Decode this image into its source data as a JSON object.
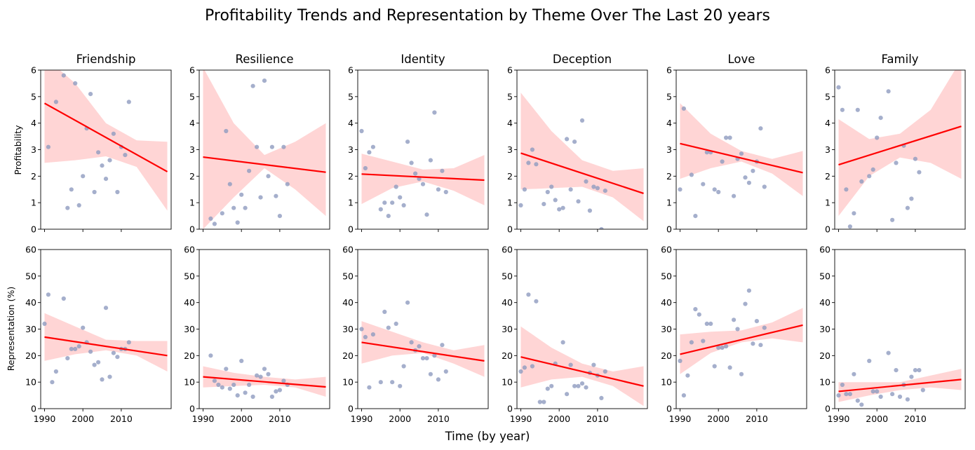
{
  "chart_data": {
    "type": "scatter",
    "title": "Profitability Trends and Representation by Theme Over The Last 20 years",
    "xlabel": "Time (by year)",
    "x_ticks": [
      1990,
      2000,
      2010
    ],
    "xlim": [
      1989,
      2023
    ],
    "rows": [
      {
        "ylabel": "Profitability",
        "ylim": [
          0,
          6
        ],
        "y_ticks": [
          0,
          1,
          2,
          3,
          4,
          5,
          6
        ]
      },
      {
        "ylabel": "Representation (%)",
        "ylim": [
          0,
          60
        ],
        "y_ticks": [
          0,
          10,
          20,
          30,
          40,
          50,
          60
        ]
      }
    ],
    "colors": {
      "points": "#8f9bbf",
      "fit_line": "#ff0000",
      "ci_band": "#ffb3b3"
    },
    "panels": [
      {
        "theme": "Friendship",
        "profitability": {
          "x": [
            1990,
            1991,
            1993,
            1995,
            1996,
            1997,
            1998,
            1999,
            2000,
            2001,
            2002,
            2003,
            2004,
            2005,
            2006,
            2007,
            2008,
            2009,
            2010,
            2011,
            2012
          ],
          "y": [
            6.1,
            3.1,
            4.8,
            5.8,
            0.8,
            1.5,
            5.5,
            0.9,
            2.0,
            3.8,
            5.1,
            1.4,
            2.9,
            2.4,
            1.9,
            2.6,
            3.6,
            1.4,
            3.1,
            2.8,
            4.8
          ],
          "fit": {
            "start": 4.75,
            "end": 2.17
          },
          "ci": {
            "lower": [
              2.5,
              2.6,
              2.75,
              2.35,
              0.7
            ],
            "upper": [
              6.5,
              5.5,
              4.0,
              3.35,
              3.3
            ]
          }
        },
        "representation": {
          "x": [
            1990,
            1991,
            1992,
            1993,
            1995,
            1996,
            1997,
            1998,
            1999,
            2000,
            2001,
            2002,
            2003,
            2004,
            2005,
            2006,
            2007,
            2008,
            2009,
            2010,
            2011,
            2012
          ],
          "y": [
            32,
            43,
            10,
            14,
            41.5,
            19,
            22.5,
            22.5,
            23.5,
            30.5,
            25,
            21.5,
            16.5,
            17.5,
            11,
            38,
            12,
            21,
            19.5,
            22.5,
            22.5,
            25
          ],
          "fit": {
            "start": 27,
            "end": 20
          },
          "ci": {
            "lower": [
              18,
              20.5,
              22,
              20,
              14
            ],
            "upper": [
              36,
              31,
              26,
              25.5,
              25.5
            ]
          }
        }
      },
      {
        "theme": "Resilience",
        "profitability": {
          "x": [
            1992,
            1993,
            1995,
            1996,
            1997,
            1998,
            1999,
            2000,
            2001,
            2002,
            2003,
            2004,
            2005,
            2006,
            2007,
            2008,
            2009,
            2010,
            2011,
            2012
          ],
          "y": [
            0.4,
            0.2,
            0.6,
            3.7,
            1.7,
            0.8,
            0.25,
            1.3,
            0.8,
            2.2,
            5.4,
            3.1,
            1.2,
            5.6,
            2.0,
            3.1,
            1.25,
            0.5,
            3.1,
            1.7
          ],
          "fit": {
            "start": 2.72,
            "end": 2.15
          },
          "ci": {
            "lower": [
              0.0,
              1.2,
              2.3,
              1.5,
              0.5
            ],
            "upper": [
              6.1,
              4.0,
              2.8,
              3.3,
              4.0
            ]
          }
        },
        "representation": {
          "x": [
            1992,
            1993,
            1994,
            1995,
            1996,
            1997,
            1998,
            1999,
            2000,
            2001,
            2002,
            2003,
            2004,
            2005,
            2006,
            2007,
            2008,
            2009,
            2010,
            2011,
            2012
          ],
          "y": [
            20,
            10.5,
            9,
            8,
            15,
            7.5,
            9,
            5,
            18,
            6,
            9,
            4.5,
            12.5,
            12,
            15,
            13,
            4.5,
            6.5,
            7,
            10.5,
            9
          ],
          "fit": {
            "start": 12,
            "end": 8.2
          },
          "ci": {
            "lower": [
              8,
              8.5,
              9,
              8,
              4.5
            ],
            "upper": [
              16,
              13.5,
              12,
              11,
              12
            ]
          }
        }
      },
      {
        "theme": "Identity",
        "profitability": {
          "x": [
            1990,
            1991,
            1992,
            1993,
            1995,
            1996,
            1997,
            1998,
            1999,
            2000,
            2001,
            2002,
            2003,
            2004,
            2005,
            2006,
            2007,
            2008,
            2009,
            2010,
            2011,
            2012
          ],
          "y": [
            3.7,
            2.3,
            2.9,
            3.1,
            0.75,
            1.0,
            0.5,
            1.0,
            1.6,
            1.2,
            0.9,
            3.3,
            2.5,
            2.1,
            1.9,
            1.7,
            0.55,
            2.6,
            4.4,
            1.5,
            2.2,
            1.4
          ],
          "fit": {
            "start": 2.08,
            "end": 1.85
          },
          "ci": {
            "lower": [
              0.95,
              1.55,
              1.8,
              1.45,
              0.9
            ],
            "upper": [
              2.85,
              2.55,
              2.25,
              2.3,
              2.8
            ]
          }
        },
        "representation": {
          "x": [
            1990,
            1991,
            1992,
            1993,
            1995,
            1996,
            1997,
            1998,
            1999,
            2000,
            2001,
            2002,
            2003,
            2004,
            2005,
            2006,
            2007,
            2008,
            2009,
            2010,
            2011,
            2012
          ],
          "y": [
            30,
            27,
            8,
            28,
            10,
            36.5,
            30.5,
            10,
            32,
            8.5,
            16,
            40,
            25,
            22,
            23.5,
            19,
            19,
            13,
            20,
            11,
            24,
            14
          ],
          "fit": {
            "start": 25,
            "end": 18
          },
          "ci": {
            "lower": [
              17,
              20,
              21,
              17,
              12
            ],
            "upper": [
              33,
              29,
              25,
              22,
              24
            ]
          }
        }
      },
      {
        "theme": "Deception",
        "profitability": {
          "x": [
            1990,
            1991,
            1992,
            1993,
            1994,
            1996,
            1997,
            1998,
            1999,
            2000,
            2001,
            2002,
            2003,
            2004,
            2005,
            2006,
            2007,
            2008,
            2009,
            2010,
            2011,
            2012
          ],
          "y": [
            0.9,
            1.5,
            2.5,
            3.0,
            2.45,
            0.95,
            1.4,
            1.6,
            1.1,
            0.75,
            0.8,
            3.4,
            1.5,
            3.3,
            1.05,
            4.1,
            1.8,
            0.7,
            1.6,
            1.55,
            0.0,
            1.45
          ],
          "fit": {
            "start": 2.87,
            "end": 1.35
          },
          "ci": {
            "lower": [
              1.5,
              1.55,
              1.6,
              1.2,
              0.3
            ],
            "upper": [
              5.15,
              3.7,
              2.6,
              2.2,
              2.3
            ]
          }
        },
        "representation": {
          "x": [
            1990,
            1991,
            1992,
            1993,
            1994,
            1995,
            1996,
            1997,
            1998,
            1999,
            2001,
            2002,
            2003,
            2004,
            2005,
            2006,
            2007,
            2008,
            2009,
            2010,
            2011,
            2012
          ],
          "y": [
            14,
            15.5,
            43,
            16,
            40.5,
            2.5,
            2.5,
            7.5,
            8.5,
            17,
            25,
            5.5,
            16.5,
            8.5,
            8.5,
            9.5,
            8,
            13.5,
            16.5,
            12.5,
            4,
            14
          ],
          "fit": {
            "start": 19.5,
            "end": 8.5
          },
          "ci": {
            "lower": [
              8,
              11,
              12,
              8.5,
              1
            ],
            "upper": [
              31,
              23,
              17,
              14,
              16
            ]
          }
        }
      },
      {
        "theme": "Love",
        "profitability": {
          "x": [
            1990,
            1991,
            1993,
            1994,
            1996,
            1997,
            1998,
            1999,
            2000,
            2001,
            2002,
            2003,
            2004,
            2005,
            2006,
            2007,
            2008,
            2009,
            2010,
            2011,
            2012
          ],
          "y": [
            1.5,
            4.55,
            2.05,
            0.5,
            1.7,
            2.9,
            2.9,
            1.5,
            1.4,
            2.55,
            3.45,
            3.45,
            1.25,
            2.65,
            2.85,
            1.95,
            1.75,
            2.2,
            2.55,
            3.8,
            1.6
          ],
          "fit": {
            "start": 3.23,
            "end": 2.13
          },
          "ci": {
            "lower": [
              1.9,
              2.3,
              2.55,
              2.1,
              1.25
            ],
            "upper": [
              4.75,
              3.6,
              2.95,
              2.65,
              2.95
            ]
          }
        },
        "representation": {
          "x": [
            1990,
            1991,
            1992,
            1993,
            1994,
            1995,
            1996,
            1997,
            1998,
            1999,
            2000,
            2001,
            2002,
            2003,
            2004,
            2005,
            2006,
            2007,
            2008,
            2009,
            2010,
            2011,
            2012
          ],
          "y": [
            18,
            5,
            12.5,
            25,
            37.5,
            35.5,
            25.5,
            32,
            32,
            16,
            23,
            23,
            23.5,
            15.5,
            33.5,
            30,
            13,
            39.5,
            44.5,
            24.5,
            33,
            24,
            30.5
          ],
          "fit": {
            "start": 20.5,
            "end": 31.5
          },
          "ci": {
            "lower": [
              13,
              21,
              25,
              26.5,
              25
            ],
            "upper": [
              28,
              29,
              29.5,
              32.5,
              38
            ]
          }
        }
      },
      {
        "theme": "Family",
        "profitability": {
          "x": [
            1990,
            1991,
            1992,
            1993,
            1994,
            1995,
            1996,
            1998,
            1999,
            2000,
            2001,
            2003,
            2004,
            2005,
            2007,
            2008,
            2009,
            2010,
            2011,
            2012
          ],
          "y": [
            5.35,
            4.5,
            1.5,
            0.1,
            0.6,
            4.5,
            1.8,
            2.0,
            2.25,
            3.45,
            4.2,
            5.2,
            0.35,
            2.5,
            3.15,
            0.8,
            1.15,
            2.65,
            2.15,
            6.1
          ],
          "fit": {
            "start": 2.43,
            "end": 3.88
          },
          "ci": {
            "lower": [
              0.5,
              2.0,
              2.7,
              2.5,
              1.9
            ],
            "upper": [
              4.15,
              3.4,
              3.6,
              4.5,
              6.4
            ]
          }
        },
        "representation": {
          "x": [
            1990,
            1991,
            1992,
            1993,
            1994,
            1995,
            1996,
            1998,
            1999,
            2000,
            2001,
            2003,
            2004,
            2005,
            2006,
            2007,
            2008,
            2009,
            2010,
            2011,
            2012
          ],
          "y": [
            5,
            9,
            5.5,
            5.5,
            13,
            3,
            1.5,
            18,
            6.5,
            6.5,
            4.5,
            21,
            5.5,
            14.5,
            4.5,
            9,
            3.5,
            12,
            14.5,
            14.5,
            7
          ],
          "fit": {
            "start": 6.5,
            "end": 11
          },
          "ci": {
            "lower": [
              2.5,
              5,
              7,
              8,
              7
            ],
            "upper": [
              10,
              10,
              10,
              12.5,
              15
            ]
          }
        }
      }
    ]
  }
}
